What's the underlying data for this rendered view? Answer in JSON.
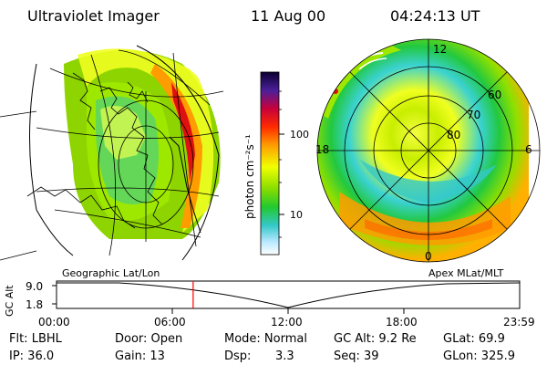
{
  "header": {
    "title": "Ultraviolet Imager",
    "date": "11 Aug 00",
    "time": "04:24:13 UT"
  },
  "colorbar": {
    "unit_label": "photon cm⁻²s⁻¹",
    "ticks": [
      "100",
      "10"
    ]
  },
  "left_panel": {
    "caption": "Geographic Lat/Lon"
  },
  "right_panel": {
    "caption": "Apex  MLat/MLT",
    "mlt_labels": [
      "12",
      "18",
      "6",
      "0"
    ],
    "lat_labels": [
      "60",
      "70",
      "80"
    ]
  },
  "altitude_track": {
    "axis_label": "GC Alt",
    "ticks": [
      "9.0",
      "1.8"
    ],
    "time_ticks": [
      "00:00",
      "06:00",
      "12:00",
      "18:00",
      "23:59"
    ],
    "marker_fraction": 0.295
  },
  "status": {
    "filter": "Flt: LBHL",
    "door": "Door: Open",
    "mode": "Mode: Normal",
    "gc_alt": "GC Alt: 9.2 Re",
    "glat": "GLat:  69.9",
    "ip": "IP: 36.0",
    "gain": "Gain: 13",
    "dsp_label": "Dsp:",
    "dsp_value": "3.3",
    "seq": "Seq: 39",
    "glon": "GLon: 325.9"
  },
  "colors": {
    "marker": "#ff0000",
    "grid": "#000000"
  }
}
